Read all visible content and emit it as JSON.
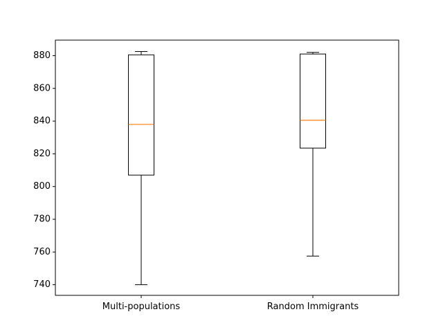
{
  "chart_data": {
    "type": "box",
    "title": "",
    "xlabel": "",
    "ylabel": "",
    "categories": [
      "Multi-populations",
      "Random Immigrants"
    ],
    "boxes": [
      {
        "label": "Multi-populations",
        "whisker_low": 740,
        "q1": 807,
        "median": 838,
        "q3": 880.5,
        "whisker_high": 882.5
      },
      {
        "label": "Random Immigrants",
        "whisker_low": 757.5,
        "q1": 823.5,
        "median": 840.5,
        "q3": 881,
        "whisker_high": 882
      }
    ],
    "ylim": [
      733.5,
      889.5
    ],
    "yticks": [
      740,
      760,
      780,
      800,
      820,
      840,
      860,
      880
    ],
    "grid": false,
    "legend": "none",
    "colors": {
      "box": "#000000",
      "median": "#ff7f0e",
      "axes": "#000000"
    }
  }
}
